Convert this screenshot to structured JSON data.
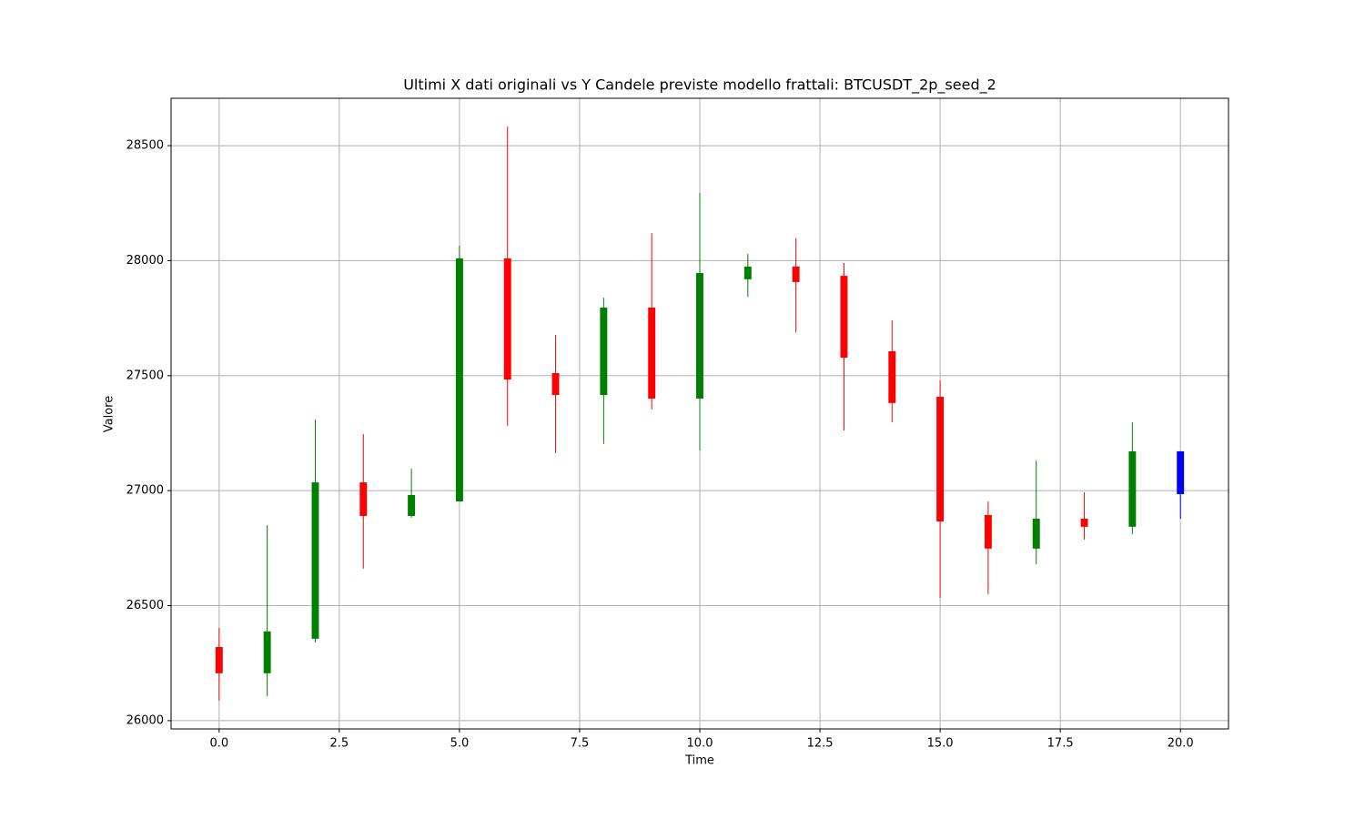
{
  "chart_data": {
    "type": "candlestick",
    "title": "Ultimi X dati originali vs Y Candele previste modello frattali: BTCUSDT_2p_seed_2",
    "x_label": "Time",
    "y_label": "Valore",
    "x": [
      0,
      1,
      2,
      3,
      4,
      5,
      6,
      7,
      8,
      9,
      10,
      11,
      12,
      13,
      14,
      15,
      16,
      17,
      18,
      19,
      20
    ],
    "open": [
      26320,
      26206,
      26356,
      27036,
      26890,
      26953,
      28010,
      27511,
      27416,
      27796,
      27400,
      27919,
      27974,
      27934,
      27606,
      27408,
      26894,
      26748,
      26878,
      26843,
      27171
    ],
    "high": [
      26403,
      26850,
      27309,
      27246,
      27096,
      28065,
      28583,
      27677,
      27839,
      28120,
      28294,
      28029,
      28097,
      27990,
      27741,
      27479,
      26953,
      27131,
      26993,
      27297,
      27171
    ],
    "low": [
      26087,
      26107,
      26340,
      26661,
      26882,
      26953,
      27282,
      27163,
      27203,
      27353,
      27175,
      27843,
      27689,
      27262,
      27297,
      26534,
      26550,
      26680,
      26787,
      26811,
      26878
    ],
    "close": [
      26206,
      26388,
      27036,
      26890,
      26981,
      28010,
      27483,
      27416,
      27796,
      27400,
      27946,
      27974,
      27907,
      27578,
      27381,
      26866,
      26748,
      26878,
      26843,
      27171,
      26985
    ],
    "colors": [
      "red",
      "green",
      "green",
      "red",
      "green",
      "green",
      "red",
      "red",
      "green",
      "red",
      "green",
      "green",
      "red",
      "red",
      "red",
      "red",
      "red",
      "green",
      "red",
      "green",
      "blue"
    ],
    "xlim": [
      -1,
      21
    ],
    "ylim": [
      25964,
      28706
    ],
    "xticks": [
      {
        "value": 0,
        "label": "0.0"
      },
      2.5,
      {
        "value": 5,
        "label": "5.0"
      },
      7.5,
      {
        "value": 10,
        "label": "10.0"
      },
      12.5,
      {
        "value": 15,
        "label": "15.0"
      },
      17.5,
      {
        "value": 20,
        "label": "20.0"
      }
    ],
    "yticks": [
      26000,
      26500,
      27000,
      27500,
      28000,
      28500
    ],
    "grid": true
  }
}
